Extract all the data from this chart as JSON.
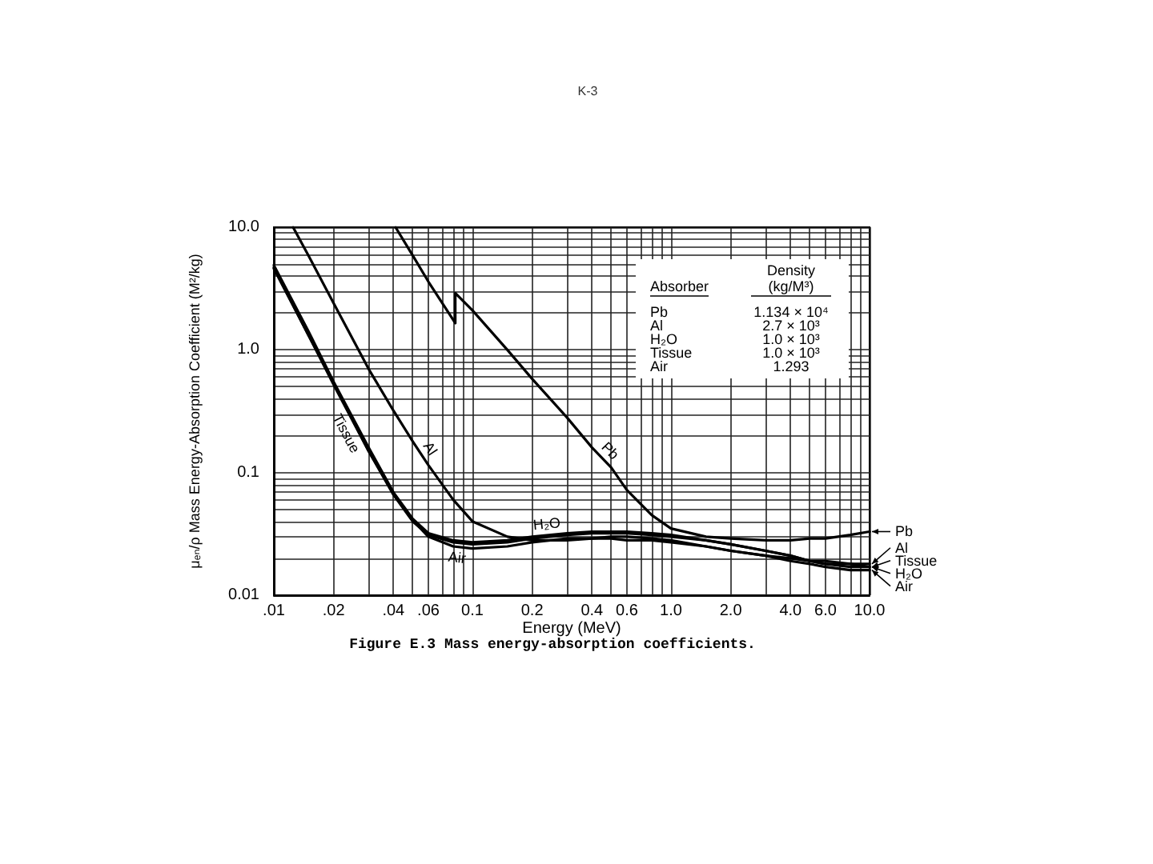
{
  "chart_data": {
    "type": "line",
    "xlabel": "Energy (MeV)",
    "ylabel": "μₑₙ/ρ Mass Energy-Absorption Coefficient (M²/kg)",
    "x": [
      0.01,
      0.015,
      0.02,
      0.03,
      0.04,
      0.05,
      0.06,
      0.08,
      0.1,
      0.15,
      0.2,
      0.3,
      0.4,
      0.5,
      0.6,
      0.8,
      1,
      1.5,
      2,
      3,
      4,
      5,
      6,
      8,
      10
    ],
    "series": [
      {
        "name": "Pb",
        "color": "#000000",
        "x": [
          0.041,
          0.05,
          0.06,
          0.082,
          0.082,
          0.1,
          0.15,
          0.2,
          0.3,
          0.4,
          0.5,
          0.6,
          0.8,
          1,
          1.5,
          2,
          3,
          4,
          5,
          6,
          8,
          10
        ],
        "values": [
          10,
          5.9,
          3.6,
          1.65,
          2.9,
          2.1,
          1.0,
          0.58,
          0.28,
          0.16,
          0.11,
          0.072,
          0.045,
          0.035,
          0.03,
          0.029,
          0.028,
          0.028,
          0.029,
          0.029,
          0.031,
          0.033
        ]
      },
      {
        "name": "Al",
        "color": "#000000",
        "x": [
          0.0125,
          0.015,
          0.02,
          0.03,
          0.04,
          0.05,
          0.06,
          0.08,
          0.1,
          0.15,
          0.2,
          0.3,
          0.4,
          0.5,
          0.6,
          0.8,
          1,
          1.5,
          2,
          3,
          4,
          5,
          6,
          8,
          10
        ],
        "values": [
          10,
          5.8,
          2.4,
          0.7,
          0.32,
          0.18,
          0.115,
          0.06,
          0.04,
          0.03,
          0.028,
          0.028,
          0.029,
          0.029,
          0.028,
          0.028,
          0.027,
          0.025,
          0.023,
          0.021,
          0.02,
          0.019,
          0.019,
          0.018,
          0.018
        ]
      },
      {
        "name": "Tissue",
        "color": "#000000",
        "values": [
          4.6,
          1.3,
          0.52,
          0.15,
          0.066,
          0.04,
          0.031,
          0.027,
          0.026,
          0.027,
          0.029,
          0.031,
          0.032,
          0.032,
          0.032,
          0.031,
          0.03,
          0.028,
          0.026,
          0.023,
          0.021,
          0.019,
          0.018,
          0.018,
          0.017
        ]
      },
      {
        "name": "H₂O",
        "color": "#000000",
        "values": [
          4.9,
          1.4,
          0.55,
          0.16,
          0.069,
          0.042,
          0.032,
          0.028,
          0.027,
          0.028,
          0.03,
          0.032,
          0.033,
          0.033,
          0.033,
          0.032,
          0.031,
          0.028,
          0.026,
          0.023,
          0.021,
          0.019,
          0.018,
          0.017,
          0.017
        ]
      },
      {
        "name": "Air",
        "color": "#000000",
        "values": [
          4.7,
          1.3,
          0.54,
          0.15,
          0.068,
          0.041,
          0.03,
          0.025,
          0.024,
          0.025,
          0.027,
          0.029,
          0.029,
          0.03,
          0.03,
          0.029,
          0.028,
          0.025,
          0.023,
          0.021,
          0.019,
          0.018,
          0.017,
          0.016,
          0.016
        ]
      }
    ],
    "xlim": [
      0.01,
      10
    ],
    "ylim": [
      0.01,
      10
    ],
    "xticks": [
      {
        "value": 0.01,
        "label": ".01"
      },
      {
        "value": 0.02,
        "label": ".02"
      },
      {
        "value": 0.03,
        "label": null
      },
      {
        "value": 0.04,
        "label": ".04"
      },
      {
        "value": 0.05,
        "label": null
      },
      {
        "value": 0.06,
        "label": ".06"
      },
      {
        "value": 0.07,
        "label": null
      },
      {
        "value": 0.08,
        "label": null
      },
      {
        "value": 0.09,
        "label": null
      },
      0.1,
      0.2,
      {
        "value": 0.3,
        "label": null
      },
      0.4,
      {
        "value": 0.5,
        "label": null
      },
      0.6,
      {
        "value": 0.7,
        "label": null
      },
      {
        "value": 0.8,
        "label": null
      },
      {
        "value": 0.9,
        "label": null
      },
      {
        "value": 1,
        "label": "1.0"
      },
      {
        "value": 2,
        "label": "2.0"
      },
      {
        "value": 3,
        "label": null
      },
      {
        "value": 4,
        "label": "4.0"
      },
      {
        "value": 5,
        "label": null
      },
      {
        "value": 6,
        "label": "6.0"
      },
      {
        "value": 7,
        "label": null
      },
      {
        "value": 8,
        "label": null
      },
      {
        "value": 9,
        "label": null
      },
      {
        "value": 10,
        "label": "10.0"
      }
    ],
    "yticks": [
      0.01,
      {
        "value": 0.02,
        "label": null
      },
      {
        "value": 0.03,
        "label": null
      },
      {
        "value": 0.04,
        "label": null
      },
      {
        "value": 0.05,
        "label": null
      },
      {
        "value": 0.06,
        "label": null
      },
      {
        "value": 0.07,
        "label": null
      },
      {
        "value": 0.08,
        "label": null
      },
      {
        "value": 0.09,
        "label": null
      },
      0.1,
      {
        "value": 0.2,
        "label": null
      },
      {
        "value": 0.3,
        "label": null
      },
      {
        "value": 0.4,
        "label": null
      },
      {
        "value": 0.5,
        "label": null
      },
      {
        "value": 0.6,
        "label": null
      },
      {
        "value": 0.7,
        "label": null
      },
      {
        "value": 0.8,
        "label": null
      },
      {
        "value": 0.9,
        "label": null
      },
      {
        "value": 1,
        "label": "1.0"
      },
      {
        "value": 2,
        "label": null
      },
      {
        "value": 3,
        "label": null
      },
      {
        "value": 4,
        "label": null
      },
      {
        "value": 5,
        "label": null
      },
      {
        "value": 6,
        "label": null
      },
      {
        "value": 7,
        "label": null
      },
      {
        "value": 8,
        "label": null
      },
      {
        "value": 9,
        "label": null
      },
      {
        "value": 10,
        "label": "10.0"
      }
    ],
    "log": "xy",
    "grid": true,
    "legend": "right",
    "annotations": [
      "K-3",
      "Figure E.3 Mass energy-absorption coefficients.",
      "Absorber",
      "Density (kg/M³)",
      "Pb",
      "1.134 × 10⁴",
      "Al",
      "2.7 × 10³",
      "H₂O",
      "1.0 × 10³",
      "Tissue",
      "1.0 × 10³",
      "Air",
      "1.293",
      {
        "text": "Pb",
        "x": 0.45,
        "y": 0.13
      },
      {
        "text": "Al",
        "x": 0.055,
        "y": 0.14
      },
      {
        "text": "Tissue",
        "x": 0.026,
        "y": 0.23
      },
      {
        "text": "H₂O",
        "x": 0.24,
        "y": 0.031
      },
      {
        "text": "Air",
        "x": 0.085,
        "y": 0.025
      }
    ]
  }
}
